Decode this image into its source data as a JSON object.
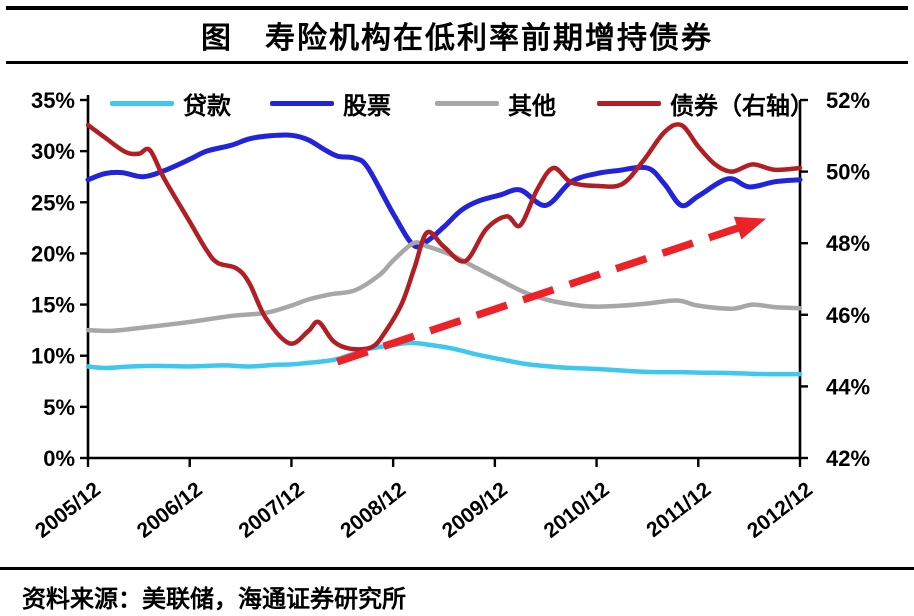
{
  "header": {
    "title": "图　寿险机构在低利率前期增持债券"
  },
  "footer": {
    "source": "资料来源：美联储，海通证券研究所"
  },
  "chart_data": {
    "type": "line",
    "title": "寿险机构在低利率前期增持债券",
    "legend_position": "top",
    "grid": false,
    "x_axis": {
      "unit": "months since 2005/12",
      "min": 0,
      "max": 84,
      "ticks": [
        {
          "m": 0,
          "label": "2005/12"
        },
        {
          "m": 12,
          "label": "2006/12"
        },
        {
          "m": 24,
          "label": "2007/12"
        },
        {
          "m": 36,
          "label": "2008/12"
        },
        {
          "m": 48,
          "label": "2009/12"
        },
        {
          "m": 60,
          "label": "2010/12"
        },
        {
          "m": 72,
          "label": "2011/12"
        },
        {
          "m": 84,
          "label": "2012/12"
        }
      ]
    },
    "left_axis": {
      "min": 0,
      "max": 35,
      "ticks": [
        {
          "v": 0,
          "label": "0%"
        },
        {
          "v": 5,
          "label": "5%"
        },
        {
          "v": 10,
          "label": "10%"
        },
        {
          "v": 15,
          "label": "15%"
        },
        {
          "v": 20,
          "label": "20%"
        },
        {
          "v": 25,
          "label": "25%"
        },
        {
          "v": 30,
          "label": "30%"
        },
        {
          "v": 35,
          "label": "35%"
        }
      ]
    },
    "right_axis": {
      "min": 42,
      "max": 52,
      "ticks": [
        {
          "v": 42,
          "label": "42%"
        },
        {
          "v": 44,
          "label": "44%"
        },
        {
          "v": 46,
          "label": "46%"
        },
        {
          "v": 48,
          "label": "48%"
        },
        {
          "v": 50,
          "label": "50%"
        },
        {
          "v": 52,
          "label": "52%"
        }
      ]
    },
    "series": [
      {
        "name": "贷款",
        "axis": "left",
        "color": "#3EC7EF",
        "points": [
          [
            0,
            8.95
          ],
          [
            2,
            8.8
          ],
          [
            5,
            8.95
          ],
          [
            8,
            9.0
          ],
          [
            12,
            8.95
          ],
          [
            16,
            9.05
          ],
          [
            19,
            8.95
          ],
          [
            22,
            9.1
          ],
          [
            24,
            9.15
          ],
          [
            26,
            9.3
          ],
          [
            29,
            9.6
          ],
          [
            31,
            10.1
          ],
          [
            33,
            10.65
          ],
          [
            36,
            11.05
          ],
          [
            38,
            11.25
          ],
          [
            40,
            11.1
          ],
          [
            43,
            10.7
          ],
          [
            46,
            10.1
          ],
          [
            49,
            9.6
          ],
          [
            52,
            9.15
          ],
          [
            56,
            8.85
          ],
          [
            60,
            8.7
          ],
          [
            64,
            8.5
          ],
          [
            67,
            8.4
          ],
          [
            70,
            8.4
          ],
          [
            72,
            8.35
          ],
          [
            76,
            8.3
          ],
          [
            80,
            8.2
          ],
          [
            84,
            8.2
          ]
        ]
      },
      {
        "name": "股票",
        "axis": "left",
        "color": "#2224DC",
        "points": [
          [
            0,
            27.2
          ],
          [
            2,
            27.8
          ],
          [
            4,
            27.9
          ],
          [
            6.5,
            27.5
          ],
          [
            9,
            28.1
          ],
          [
            12,
            29.2
          ],
          [
            14,
            30.0
          ],
          [
            17,
            30.6
          ],
          [
            19,
            31.2
          ],
          [
            21.5,
            31.5
          ],
          [
            24,
            31.55
          ],
          [
            26,
            31.1
          ],
          [
            28,
            30.1
          ],
          [
            29.5,
            29.5
          ],
          [
            31.5,
            29.3
          ],
          [
            33,
            28.4
          ],
          [
            36,
            23.9
          ],
          [
            38.4,
            20.8
          ],
          [
            40,
            21.2
          ],
          [
            42,
            22.6
          ],
          [
            44,
            24.2
          ],
          [
            46,
            25.1
          ],
          [
            48.6,
            25.7
          ],
          [
            51,
            26.2
          ],
          [
            54,
            24.7
          ],
          [
            57,
            27.0
          ],
          [
            60,
            27.8
          ],
          [
            62.5,
            28.1
          ],
          [
            66,
            28.35
          ],
          [
            68,
            26.8
          ],
          [
            70,
            24.7
          ],
          [
            72,
            25.6
          ],
          [
            75.5,
            27.3
          ],
          [
            78,
            26.5
          ],
          [
            81,
            27.0
          ],
          [
            84,
            27.2
          ]
        ]
      },
      {
        "name": "其他",
        "axis": "left",
        "color": "#A7A7A7",
        "points": [
          [
            0,
            12.5
          ],
          [
            3,
            12.45
          ],
          [
            7,
            12.8
          ],
          [
            12,
            13.3
          ],
          [
            17,
            13.9
          ],
          [
            21,
            14.2
          ],
          [
            24,
            14.9
          ],
          [
            26,
            15.5
          ],
          [
            28.6,
            16.0
          ],
          [
            31.5,
            16.4
          ],
          [
            34.4,
            17.9
          ],
          [
            36,
            19.3
          ],
          [
            38.4,
            21.0
          ],
          [
            40,
            20.7
          ],
          [
            43,
            19.8
          ],
          [
            46,
            18.5
          ],
          [
            48.6,
            17.4
          ],
          [
            51.5,
            16.2
          ],
          [
            54.5,
            15.4
          ],
          [
            58,
            14.9
          ],
          [
            60,
            14.8
          ],
          [
            63,
            14.9
          ],
          [
            66,
            15.1
          ],
          [
            69.5,
            15.4
          ],
          [
            72,
            14.9
          ],
          [
            76,
            14.6
          ],
          [
            78.4,
            15.0
          ],
          [
            81,
            14.75
          ],
          [
            84,
            14.65
          ]
        ]
      },
      {
        "name": "债券（右轴）",
        "axis": "right",
        "color": "#B21E23",
        "points": [
          [
            0,
            51.3
          ],
          [
            2,
            50.95
          ],
          [
            4.4,
            50.55
          ],
          [
            6,
            50.5
          ],
          [
            7.3,
            50.6
          ],
          [
            9,
            49.8
          ],
          [
            12,
            48.6
          ],
          [
            14,
            47.8
          ],
          [
            15.3,
            47.45
          ],
          [
            17.5,
            47.3
          ],
          [
            19,
            46.9
          ],
          [
            21,
            45.9
          ],
          [
            23.8,
            45.2
          ],
          [
            26,
            45.55
          ],
          [
            27.2,
            45.8
          ],
          [
            29,
            45.25
          ],
          [
            31,
            45.05
          ],
          [
            33.5,
            45.1
          ],
          [
            35,
            45.5
          ],
          [
            37,
            46.3
          ],
          [
            38.5,
            47.3
          ],
          [
            40,
            48.3
          ],
          [
            42,
            47.9
          ],
          [
            44.5,
            47.5
          ],
          [
            47,
            48.4
          ],
          [
            49.4,
            48.75
          ],
          [
            51,
            48.5
          ],
          [
            53,
            49.5
          ],
          [
            54.9,
            50.1
          ],
          [
            57,
            49.7
          ],
          [
            60,
            49.6
          ],
          [
            63,
            49.65
          ],
          [
            65.5,
            50.3
          ],
          [
            68,
            51.1
          ],
          [
            70,
            51.3
          ],
          [
            72,
            50.7
          ],
          [
            74,
            50.2
          ],
          [
            76,
            50.0
          ],
          [
            78.4,
            50.2
          ],
          [
            81,
            50.05
          ],
          [
            84,
            50.1
          ]
        ]
      }
    ],
    "annotations": [
      {
        "type": "dashed-arrow",
        "color": "#EB2227",
        "axis": "left",
        "from": {
          "month": 29.4,
          "value": 9.4
        },
        "to": {
          "month": 80.0,
          "value": 23.4
        }
      }
    ]
  }
}
